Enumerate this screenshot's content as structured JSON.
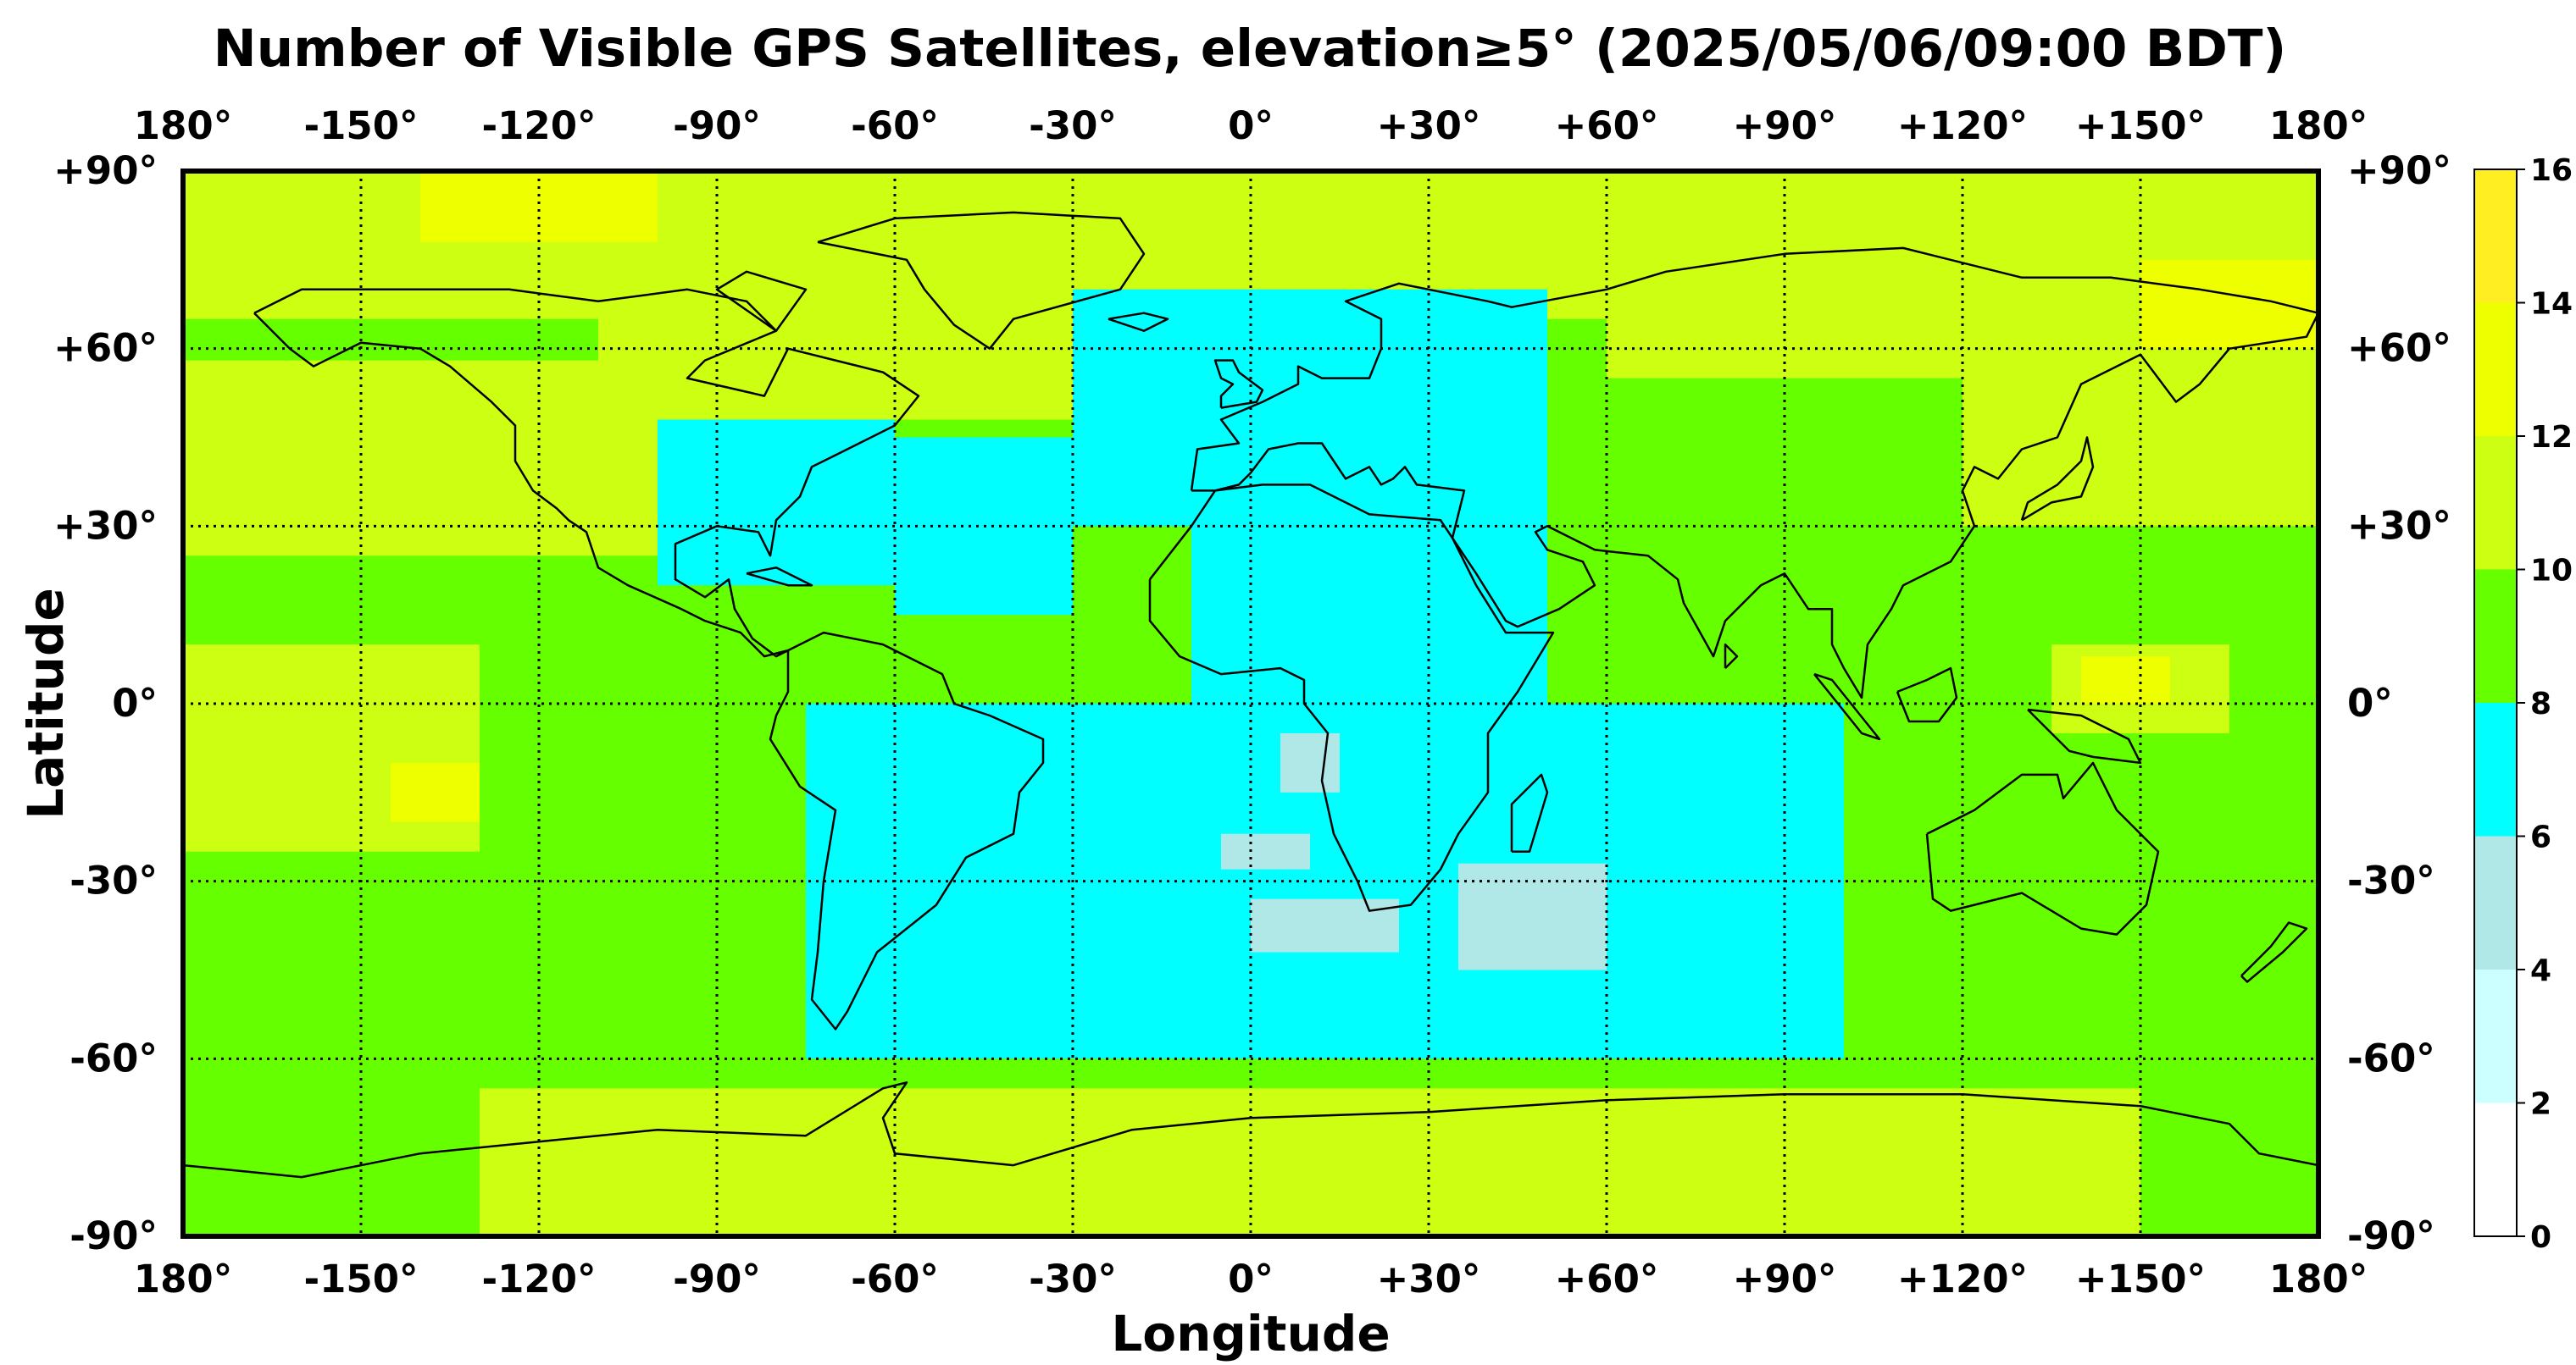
{
  "title": "Number of Visible GPS Satellites, elevation≥5° (2025/05/06/09:00 BDT)",
  "xlabel": "Longitude",
  "ylabel": "Latitude",
  "lon_ticks": [
    "180°",
    "-150°",
    "-120°",
    "-90°",
    "-60°",
    "-30°",
    "0°",
    "+30°",
    "+60°",
    "+90°",
    "+120°",
    "+150°",
    "180°"
  ],
  "lat_ticks": [
    "+90°",
    "+60°",
    "+30°",
    "0°",
    "-30°",
    "-60°",
    "-90°"
  ],
  "colorbar": {
    "ticks": [
      "16",
      "14",
      "12",
      "10",
      "8",
      "6",
      "4",
      "2",
      "0"
    ],
    "bins": [
      {
        "min": 0,
        "max": 2,
        "color": "#ffffff"
      },
      {
        "min": 2,
        "max": 4,
        "color": "#ccffff"
      },
      {
        "min": 4,
        "max": 6,
        "color": "#b0e8e8"
      },
      {
        "min": 6,
        "max": 8,
        "color": "#00ffff"
      },
      {
        "min": 8,
        "max": 10,
        "color": "#66ff00"
      },
      {
        "min": 10,
        "max": 12,
        "color": "#ccff11"
      },
      {
        "min": 12,
        "max": 14,
        "color": "#eeff00"
      },
      {
        "min": 14,
        "max": 16,
        "color": "#ffee22"
      }
    ]
  },
  "chart_data": {
    "type": "heatmap",
    "title": "Number of Visible GPS Satellites, elevation≥5° (2025/05/06/09:00 BDT)",
    "xlabel": "Longitude",
    "ylabel": "Latitude",
    "xlim": [
      -180,
      180
    ],
    "ylim": [
      -90,
      90
    ],
    "grid": true,
    "value_regions": [
      {
        "value": 9,
        "lon": [
          -180,
          180
        ],
        "lat": [
          -90,
          90
        ]
      },
      {
        "value": 11,
        "lon": [
          -180,
          180
        ],
        "lat": [
          65,
          90
        ]
      },
      {
        "value": 13,
        "lon": [
          -140,
          -100
        ],
        "lat": [
          78,
          90
        ]
      },
      {
        "value": 11,
        "lon": [
          -110,
          10
        ],
        "lat": [
          48,
          70
        ]
      },
      {
        "value": 11,
        "lon": [
          60,
          180
        ],
        "lat": [
          55,
          75
        ]
      },
      {
        "value": 13,
        "lon": [
          150,
          180
        ],
        "lat": [
          60,
          75
        ]
      },
      {
        "value": 11,
        "lon": [
          -180,
          -100
        ],
        "lat": [
          25,
          58
        ]
      },
      {
        "value": 11,
        "lon": [
          120,
          180
        ],
        "lat": [
          30,
          58
        ]
      },
      {
        "value": 11,
        "lon": [
          -180,
          -130
        ],
        "lat": [
          -25,
          10
        ]
      },
      {
        "value": 13,
        "lon": [
          -145,
          -130
        ],
        "lat": [
          -20,
          -10
        ]
      },
      {
        "value": 11,
        "lon": [
          135,
          165
        ],
        "lat": [
          -5,
          10
        ]
      },
      {
        "value": 13,
        "lon": [
          140,
          155
        ],
        "lat": [
          0,
          8
        ]
      },
      {
        "value": 11,
        "lon": [
          -130,
          150
        ],
        "lat": [
          -90,
          -65
        ]
      },
      {
        "value": 7,
        "lon": [
          -100,
          -60
        ],
        "lat": [
          20,
          48
        ]
      },
      {
        "value": 7,
        "lon": [
          -60,
          -30
        ],
        "lat": [
          15,
          45
        ]
      },
      {
        "value": 7,
        "lon": [
          -30,
          50
        ],
        "lat": [
          30,
          70
        ]
      },
      {
        "value": 7,
        "lon": [
          -10,
          50
        ],
        "lat": [
          0,
          30
        ]
      },
      {
        "value": 7,
        "lon": [
          -75,
          100
        ],
        "lat": [
          -60,
          0
        ]
      },
      {
        "value": 5,
        "lon": [
          5,
          15
        ],
        "lat": [
          -15,
          -5
        ]
      },
      {
        "value": 5,
        "lon": [
          -5,
          10
        ],
        "lat": [
          -28,
          -22
        ]
      },
      {
        "value": 5,
        "lon": [
          0,
          25
        ],
        "lat": [
          -42,
          -33
        ]
      },
      {
        "value": 5,
        "lon": [
          35,
          60
        ],
        "lat": [
          -45,
          -27
        ]
      }
    ]
  }
}
